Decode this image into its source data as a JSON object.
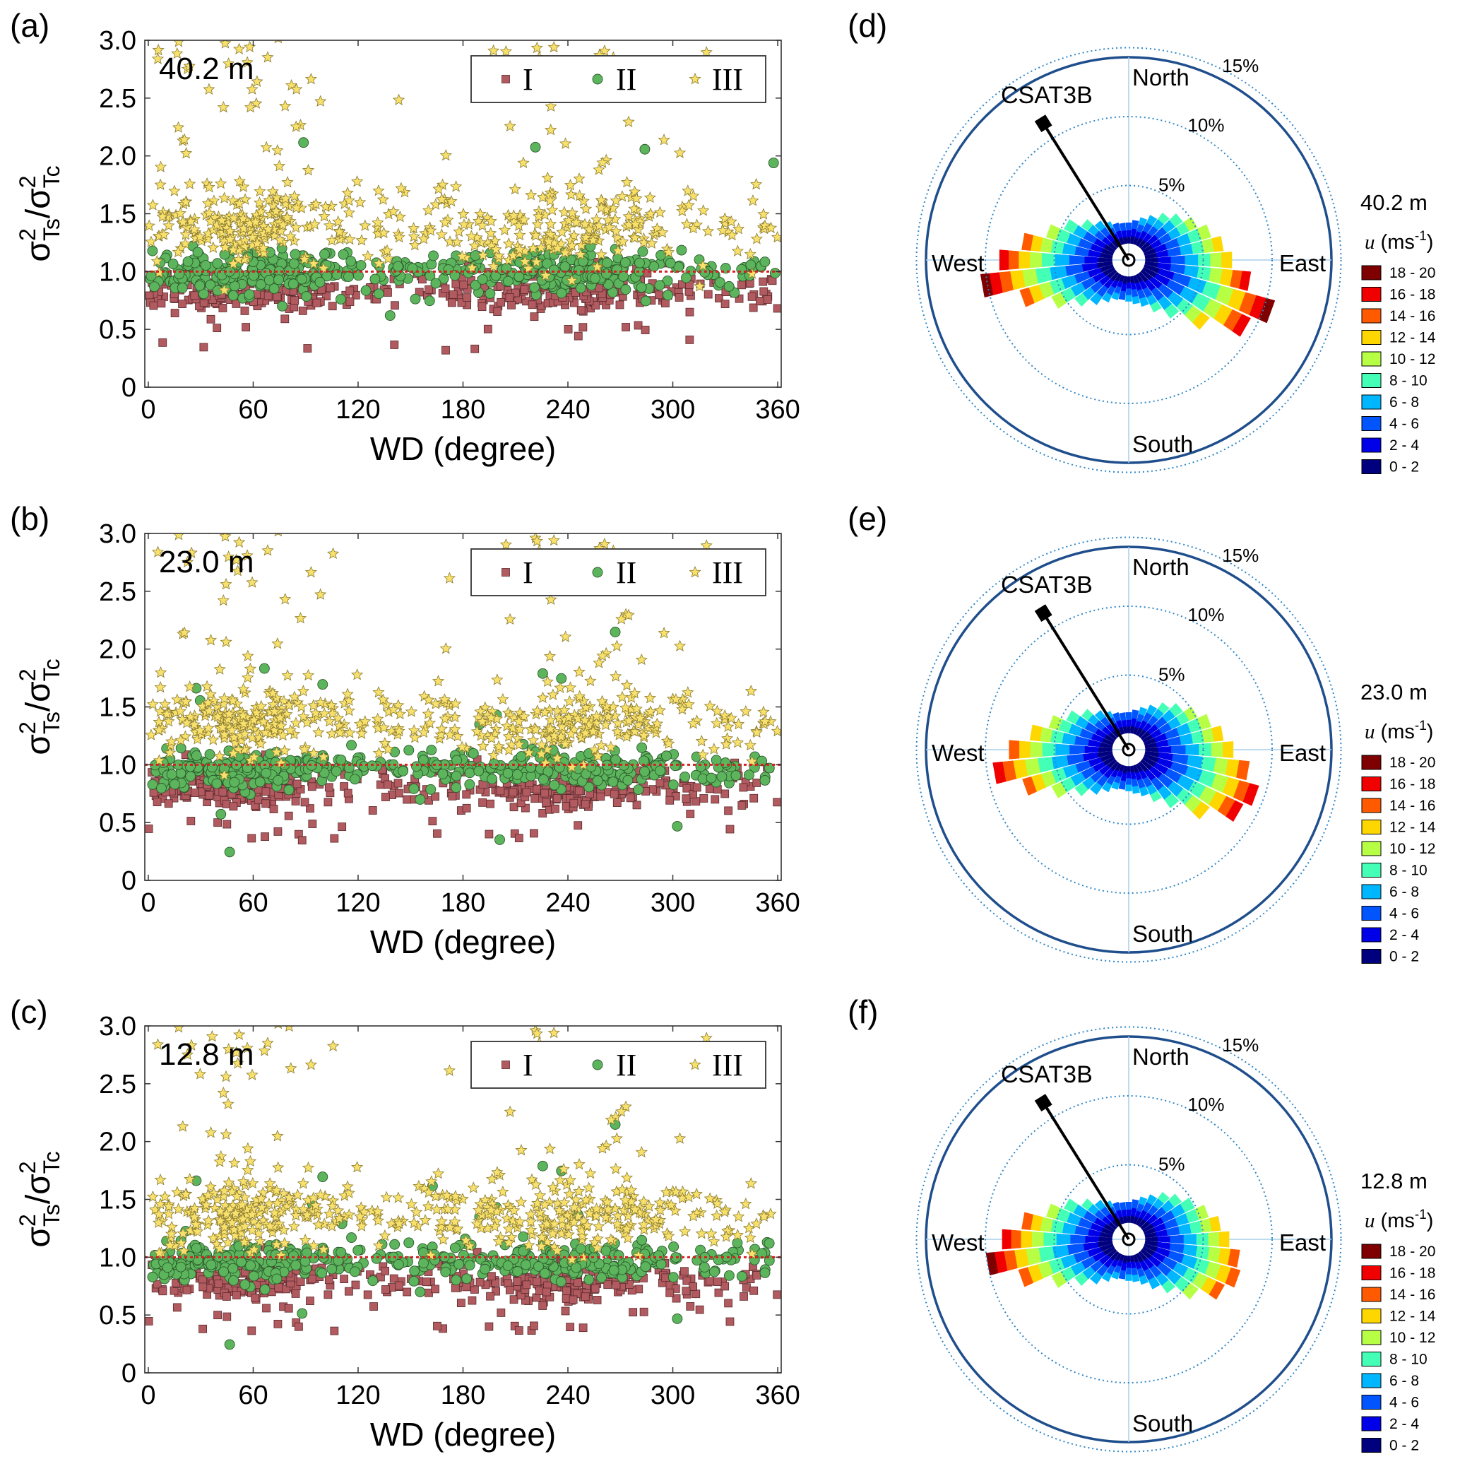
{
  "colors": {
    "class_I": "#b15a5f",
    "class_II": "#5cb55c",
    "class_III": "#f7e06b",
    "reference_line": "#d62020",
    "rose_frame": "#1f4e8c",
    "rose_grid": "#2f86c6",
    "speed_bins": [
      "#00007f",
      "#0000e8",
      "#0055ff",
      "#00b6ff",
      "#44ffb6",
      "#b6ff44",
      "#ffd700",
      "#ff5a00",
      "#f00000",
      "#7f0000"
    ]
  },
  "chart_data": [
    {
      "panel": "(a)",
      "type": "scatter",
      "height_label": "40.2 m",
      "xlabel": "WD (degree)",
      "ylabel": "σ²Ts/σ²Tc",
      "xlim": [
        -2,
        362
      ],
      "ylim": [
        0,
        3.0
      ],
      "xticks": [
        "0",
        "60",
        "120",
        "180",
        "240",
        "300",
        "360"
      ],
      "yticks": [
        "0",
        "0.5",
        "1.0",
        "1.5",
        "2.0",
        "2.5",
        "3.0"
      ],
      "reference_y": 1.0,
      "legend": [
        "I",
        "II",
        "III"
      ],
      "series": [
        {
          "name": "I",
          "marker": "square",
          "center": 0.82,
          "spread": 0.08
        },
        {
          "name": "II",
          "marker": "circle",
          "center": 1.0,
          "spread": 0.09
        },
        {
          "name": "III",
          "marker": "star",
          "center": 1.38,
          "spread": 0.18
        }
      ]
    },
    {
      "panel": "(b)",
      "type": "scatter",
      "height_label": "23.0 m",
      "xlabel": "WD (degree)",
      "ylabel": "σ²Ts/σ²Tc",
      "xlim": [
        -2,
        362
      ],
      "ylim": [
        0,
        3.0
      ],
      "xticks": [
        "0",
        "60",
        "120",
        "180",
        "240",
        "300",
        "360"
      ],
      "yticks": [
        "0",
        "0.5",
        "1.0",
        "1.5",
        "2.0",
        "2.5",
        "3.0"
      ],
      "reference_y": 1.0,
      "legend": [
        "I",
        "II",
        "III"
      ],
      "series": [
        {
          "name": "I",
          "marker": "square",
          "center": 0.8,
          "spread": 0.09
        },
        {
          "name": "II",
          "marker": "circle",
          "center": 0.97,
          "spread": 0.08
        },
        {
          "name": "III",
          "marker": "star",
          "center": 1.36,
          "spread": 0.15
        }
      ]
    },
    {
      "panel": "(c)",
      "type": "scatter",
      "height_label": "12.8 m",
      "xlabel": "WD (degree)",
      "ylabel": "σ²Ts/σ²Tc",
      "xlim": [
        -2,
        362
      ],
      "ylim": [
        0,
        3.0
      ],
      "xticks": [
        "0",
        "60",
        "120",
        "180",
        "240",
        "300",
        "360"
      ],
      "yticks": [
        "0",
        "0.5",
        "1.0",
        "1.5",
        "2.0",
        "2.5",
        "3.0"
      ],
      "reference_y": 1.0,
      "legend": [
        "I",
        "II",
        "III"
      ],
      "series": [
        {
          "name": "I",
          "marker": "square",
          "center": 0.8,
          "spread": 0.09
        },
        {
          "name": "II",
          "marker": "circle",
          "center": 0.97,
          "spread": 0.08
        },
        {
          "name": "III",
          "marker": "star",
          "center": 1.36,
          "spread": 0.15
        }
      ]
    },
    {
      "panel": "(d)",
      "type": "windrose",
      "height_label": "40.2 m",
      "directions": [
        "North",
        "East",
        "South",
        "West"
      ],
      "instrument": "CSAT3B",
      "instrument_direction_deg": 328,
      "rings_percent": [
        5,
        10,
        15
      ],
      "ring_labels": [
        "5%",
        "10%",
        "15%"
      ],
      "legend_title": "u (ms⁻¹)",
      "speed_bins": [
        "0 - 2",
        "2 - 4",
        "4 - 6",
        "6 - 8",
        "8 - 10",
        "10 - 12",
        "12 - 14",
        "14 - 16",
        "16 - 18",
        "18 - 20"
      ],
      "sector_percent": [
        1.5,
        1.7,
        2.0,
        2.4,
        3.0,
        3.6,
        4.3,
        5.0,
        5.7,
        6.3,
        7.7,
        9.8,
        8.6,
        6.0,
        4.0,
        3.0,
        2.3,
        2.0,
        1.8,
        1.7,
        1.8,
        2.2,
        2.8,
        3.6,
        5.0,
        7.0,
        9.6,
        8.2,
        6.6,
        5.0,
        4.0,
        3.0,
        2.3,
        1.9,
        1.6,
        1.5
      ]
    },
    {
      "panel": "(e)",
      "type": "windrose",
      "height_label": "23.0 m",
      "directions": [
        "North",
        "East",
        "South",
        "West"
      ],
      "instrument": "CSAT3B",
      "instrument_direction_deg": 328,
      "rings_percent": [
        5,
        10,
        15
      ],
      "ring_labels": [
        "5%",
        "10%",
        "15%"
      ],
      "legend_title": "u (ms⁻¹)",
      "speed_bins": [
        "0 - 2",
        "2 - 4",
        "4 - 6",
        "6 - 8",
        "8 - 10",
        "10 - 12",
        "12 - 14",
        "14 - 16",
        "16 - 18",
        "18 - 20"
      ],
      "sector_percent": [
        1.5,
        1.7,
        2.0,
        2.4,
        3.0,
        3.6,
        4.3,
        5.0,
        5.7,
        6.4,
        7.6,
        8.6,
        8.0,
        6.0,
        4.0,
        3.0,
        2.3,
        2.0,
        1.8,
        1.7,
        1.8,
        2.2,
        2.8,
        3.6,
        5.0,
        6.8,
        8.7,
        7.5,
        6.0,
        4.8,
        3.8,
        3.0,
        2.3,
        1.9,
        1.6,
        1.5
      ]
    },
    {
      "panel": "(f)",
      "type": "windrose",
      "height_label": "12.8 m",
      "directions": [
        "North",
        "East",
        "South",
        "West"
      ],
      "instrument": "CSAT3B",
      "instrument_direction_deg": 328,
      "rings_percent": [
        5,
        10,
        15
      ],
      "ring_labels": [
        "5%",
        "10%",
        "15%"
      ],
      "legend_title": "u (ms⁻¹)",
      "speed_bins": [
        "0 - 2",
        "2 - 4",
        "4 - 6",
        "6 - 8",
        "8 - 10",
        "10 - 12",
        "12 - 14",
        "14 - 16",
        "16 - 18",
        "18 - 20"
      ],
      "sector_percent": [
        1.5,
        1.7,
        2.0,
        2.4,
        3.0,
        3.5,
        4.1,
        4.8,
        5.5,
        6.1,
        6.9,
        7.2,
        6.5,
        5.0,
        3.6,
        2.8,
        2.2,
        1.9,
        1.8,
        1.7,
        1.8,
        2.2,
        2.8,
        3.6,
        5.0,
        7.1,
        9.2,
        8.0,
        6.6,
        5.0,
        4.0,
        3.0,
        2.3,
        1.9,
        1.6,
        1.5
      ]
    }
  ]
}
